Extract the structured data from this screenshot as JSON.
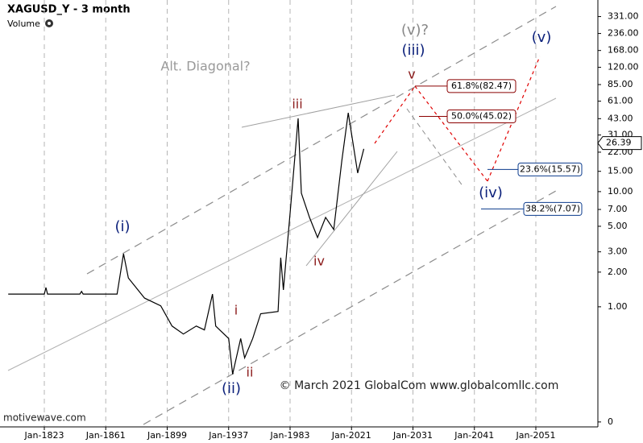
{
  "chart_data": {
    "type": "line",
    "title": "XAGUSD_Y - 3 month",
    "subtitle": "Volume",
    "x": [
      1801,
      1823,
      1824,
      1825,
      1845,
      1846,
      1847,
      1868,
      1872,
      1875,
      1885,
      1895,
      1902,
      1909,
      1917,
      1922,
      1927,
      1929,
      1937,
      1940,
      1946,
      1949,
      1955,
      1961,
      1974,
      1976,
      1978,
      1983,
      1988,
      1990,
      1995,
      2000,
      2005,
      2010,
      2015,
      2019,
      2022,
      2023
    ],
    "values": [
      1.29,
      1.29,
      1.47,
      1.29,
      1.29,
      1.36,
      1.29,
      1.29,
      2.89,
      1.78,
      1.19,
      1.02,
      0.68,
      0.58,
      0.68,
      0.63,
      1.29,
      0.68,
      0.53,
      0.26,
      0.53,
      0.36,
      0.53,
      0.87,
      0.91,
      2.67,
      1.4,
      6.47,
      43.3,
      9.7,
      5.97,
      3.99,
      5.97,
      4.69,
      18.5,
      48.3,
      14.5,
      23.5
    ],
    "color": "#000000",
    "log_scale": true,
    "grid": true,
    "xlim": [
      1796,
      2061
    ],
    "xticks": [
      {
        "value": 1823,
        "label": "Jan-1823"
      },
      {
        "value": 1861,
        "label": "Jan-1861"
      },
      {
        "value": 1899,
        "label": "Jan-1899"
      },
      {
        "value": 1937,
        "label": "Jan-1937"
      },
      {
        "value": 1983,
        "label": "Jan-1983"
      },
      {
        "value": 2021,
        "label": "Jan-2021"
      },
      {
        "value": 2031,
        "label": "Jan-2031"
      },
      {
        "value": 2041,
        "label": "Jan-2041"
      },
      {
        "value": 2051,
        "label": "Jan-2051"
      }
    ],
    "ylim": [
      0.0906,
      461
    ],
    "yticks": [
      {
        "value": 331,
        "label": "331.00"
      },
      {
        "value": 236,
        "label": "236.00"
      },
      {
        "value": 168,
        "label": "168.00"
      },
      {
        "value": 120,
        "label": "120.00"
      },
      {
        "value": 85,
        "label": "85.00"
      },
      {
        "value": 61,
        "label": "61.00"
      },
      {
        "value": 43,
        "label": "43.00"
      },
      {
        "value": 31,
        "label": "31.00"
      },
      {
        "value": 22,
        "label": "22.00"
      },
      {
        "value": 15,
        "label": "15.00"
      },
      {
        "value": 10,
        "label": "10.00"
      },
      {
        "value": 7,
        "label": "7.00"
      },
      {
        "value": 5,
        "label": "5.00"
      },
      {
        "value": 3,
        "label": "3.00"
      },
      {
        "value": 2,
        "label": "2.00"
      },
      {
        "value": 1,
        "label": "1.00"
      },
      {
        "value": 0.1,
        "label": "0"
      }
    ],
    "last_price": 26.39,
    "fib_levels": [
      {
        "value": 82.47,
        "label": "61.8%(82.47)"
      },
      {
        "value": 45.02,
        "label": "50.0%(45.02)"
      },
      {
        "value": 15.57,
        "label": "23.6%(15.57)"
      },
      {
        "value": 7.07,
        "label": "38.2%(7.07)"
      }
    ],
    "wave_labels": [
      "(i)",
      "(ii)",
      "i",
      "ii",
      "iii",
      "iv",
      "v",
      "(iii)",
      "(v)?",
      "(iv)",
      "(v)"
    ],
    "annotations": [
      "Alt. Diagonal?",
      "© March 2021 GlobalCom www.globalcomllc.com",
      "motivewave.com"
    ]
  }
}
